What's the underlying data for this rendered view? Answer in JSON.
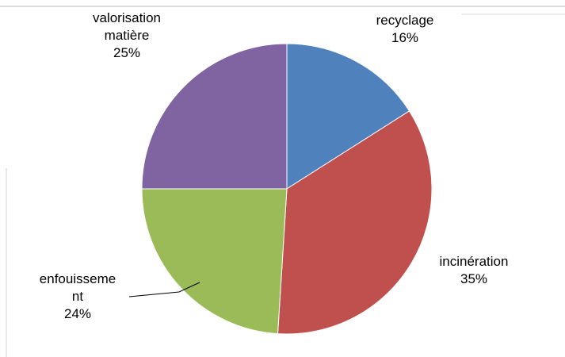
{
  "chart_data": {
    "type": "pie",
    "title": "",
    "slices": [
      {
        "name": "recyclage",
        "value": 16,
        "percent_label": "16%",
        "color": "#4F81BD"
      },
      {
        "name": "incinération",
        "value": 35,
        "percent_label": "35%",
        "color": "#C0504D"
      },
      {
        "name": "enfouissement",
        "value": 24,
        "percent_label": "24%",
        "color": "#9BBB59"
      },
      {
        "name": "valorisation matière",
        "value": 25,
        "percent_label": "25%",
        "color": "#8064A2"
      }
    ],
    "label_lines": [
      [
        "recyclage"
      ],
      [
        "incinération"
      ],
      [
        "enfouisseme",
        "nt"
      ],
      [
        "valorisation",
        "matière"
      ]
    ],
    "legend": "none",
    "start_angle": "12 o'clock",
    "direction": "clockwise"
  }
}
